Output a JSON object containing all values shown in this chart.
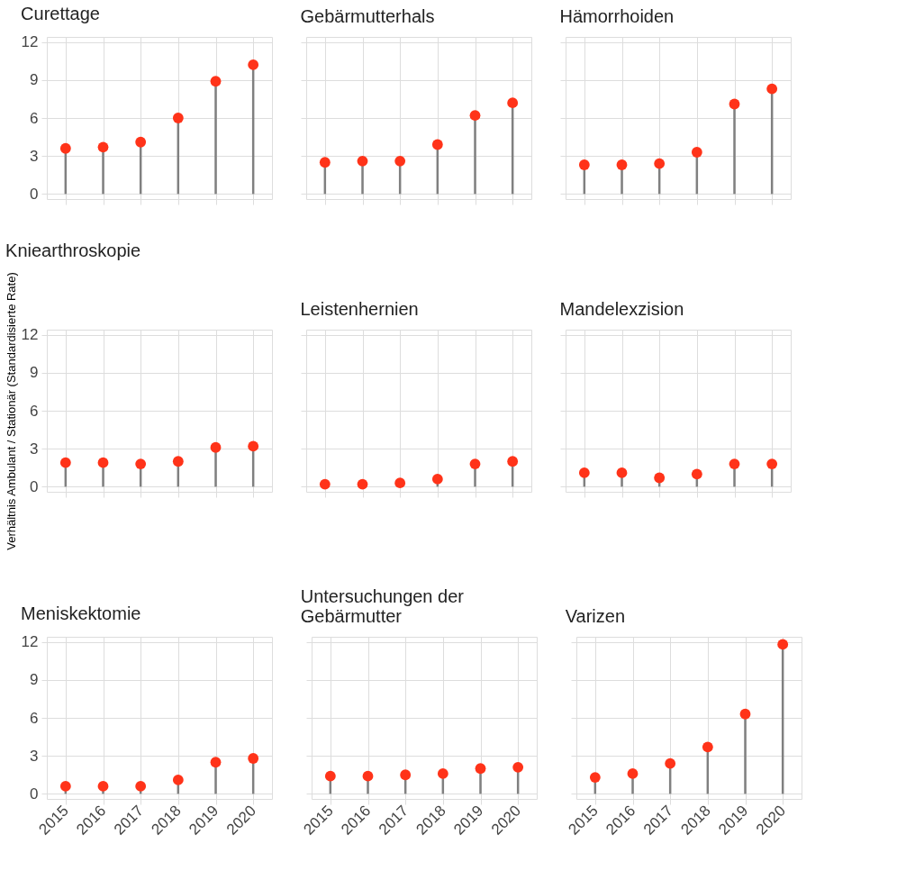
{
  "chart_data": [
    {
      "type": "lollipop",
      "title": "Curettage",
      "categories": [
        "2015",
        "2016",
        "2017",
        "2018",
        "2019",
        "2020"
      ],
      "series": [
        {
          "color": "#ff3319",
          "values": [
            3.6,
            3.7,
            4.1,
            6.0,
            8.9,
            10.2
          ]
        }
      ],
      "ylim": [
        -0.4,
        12.4
      ],
      "yticks": [
        0,
        3,
        6,
        9,
        12
      ],
      "grid": true,
      "marker": "circle",
      "tick_labels": "y"
    },
    {
      "type": "lollipop",
      "title": "Gebärmutterhals",
      "categories": [
        "2015",
        "2016",
        "2017",
        "2018",
        "2019",
        "2020"
      ],
      "series": [
        {
          "color": "#ff3319",
          "values": [
            2.5,
            2.6,
            2.6,
            3.9,
            6.2,
            7.2
          ]
        }
      ],
      "ylim": [
        -0.4,
        12.4
      ],
      "yticks": [
        0,
        3,
        6,
        9,
        12
      ],
      "grid": true,
      "marker": "circle",
      "tick_labels": false
    },
    {
      "type": "lollipop",
      "title": "Hämorrhoiden",
      "categories": [
        "2015",
        "2016",
        "2017",
        "2018",
        "2019",
        "2020"
      ],
      "series": [
        {
          "color": "#ff3319",
          "values": [
            2.3,
            2.3,
            2.4,
            3.3,
            7.1,
            8.3
          ]
        }
      ],
      "ylim": [
        -0.4,
        12.4
      ],
      "yticks": [
        0,
        3,
        6,
        9,
        12
      ],
      "grid": true,
      "marker": "circle",
      "tick_labels": false
    },
    {
      "type": "lollipop",
      "title": "Kniearthroskopie",
      "ylabel": "Verhältnis Ambulant / Stationär (Standardisierte Rate)",
      "categories": [
        "2015",
        "2016",
        "2017",
        "2018",
        "2019",
        "2020"
      ],
      "series": [
        {
          "color": "#ff3319",
          "values": [
            1.9,
            1.9,
            1.8,
            2.0,
            3.1,
            3.2
          ]
        }
      ],
      "ylim": [
        -0.4,
        12.4
      ],
      "yticks": [
        0,
        3,
        6,
        9,
        12
      ],
      "grid": true,
      "marker": "circle",
      "tick_labels": "y"
    },
    {
      "type": "lollipop",
      "title": "Leistenhernien",
      "categories": [
        "2015",
        "2016",
        "2017",
        "2018",
        "2019",
        "2020"
      ],
      "series": [
        {
          "color": "#ff3319",
          "values": [
            0.2,
            0.2,
            0.3,
            0.6,
            1.8,
            2.0
          ]
        }
      ],
      "ylim": [
        -0.4,
        12.4
      ],
      "yticks": [
        0,
        3,
        6,
        9,
        12
      ],
      "grid": true,
      "marker": "circle",
      "tick_labels": false
    },
    {
      "type": "lollipop",
      "title": "Mandelexzision",
      "categories": [
        "2015",
        "2016",
        "2017",
        "2018",
        "2019",
        "2020"
      ],
      "series": [
        {
          "color": "#ff3319",
          "values": [
            1.1,
            1.1,
            0.7,
            1.0,
            1.8,
            1.8
          ]
        }
      ],
      "ylim": [
        -0.4,
        12.4
      ],
      "yticks": [
        0,
        3,
        6,
        9,
        12
      ],
      "grid": true,
      "marker": "circle",
      "tick_labels": false
    },
    {
      "type": "lollipop",
      "title": "Meniskektomie",
      "categories": [
        "2015",
        "2016",
        "2017",
        "2018",
        "2019",
        "2020"
      ],
      "series": [
        {
          "color": "#ff3319",
          "values": [
            0.6,
            0.6,
            0.6,
            1.1,
            2.5,
            2.8
          ]
        }
      ],
      "ylim": [
        -0.4,
        12.4
      ],
      "yticks": [
        0,
        3,
        6,
        9,
        12
      ],
      "grid": true,
      "marker": "circle"
    },
    {
      "type": "lollipop",
      "title": "Untersuchungen der\nGebärmutter",
      "categories": [
        "2015",
        "2016",
        "2017",
        "2018",
        "2019",
        "2020"
      ],
      "series": [
        {
          "color": "#ff3319",
          "values": [
            1.4,
            1.4,
            1.5,
            1.6,
            2.0,
            2.1
          ]
        }
      ],
      "ylim": [
        -0.4,
        12.4
      ],
      "yticks": [
        0,
        3,
        6,
        9,
        12
      ],
      "grid": true,
      "marker": "circle",
      "tick_labels": "x"
    },
    {
      "type": "lollipop",
      "title": "Varizen",
      "categories": [
        "2015",
        "2016",
        "2017",
        "2018",
        "2019",
        "2020"
      ],
      "series": [
        {
          "color": "#ff3319",
          "values": [
            1.3,
            1.6,
            2.4,
            3.7,
            6.3,
            11.8
          ]
        }
      ],
      "ylim": [
        -0.4,
        12.4
      ],
      "yticks": [
        0,
        3,
        6,
        9,
        12
      ],
      "grid": true,
      "marker": "circle",
      "tick_labels": "x"
    }
  ]
}
